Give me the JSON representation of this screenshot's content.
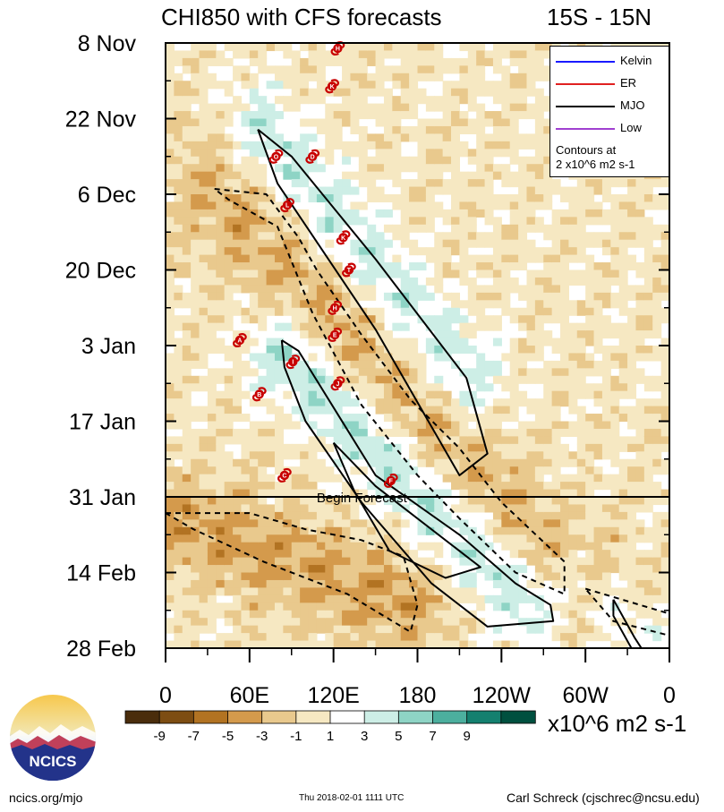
{
  "header": {
    "title": "CHI850 with CFS forecasts",
    "region": "15S - 15N"
  },
  "legend": {
    "items": [
      {
        "label": "Kelvin",
        "color": "#1a1aff"
      },
      {
        "label": "ER",
        "color": "#e02020"
      },
      {
        "label": "MJO",
        "color": "#000000"
      },
      {
        "label": "Low",
        "color": "#a040d0"
      }
    ],
    "note_line1": "Contours at",
    "note_line2": "2 x10^6 m2 s-1"
  },
  "colorbar": {
    "unit_label": "x10^6 m2 s-1",
    "tick_labels": [
      "-9",
      "-7",
      "-5",
      "-3",
      "-1",
      "1",
      "3",
      "5",
      "7",
      "9"
    ],
    "colors": [
      "#4a2d0c",
      "#7d4d12",
      "#b27322",
      "#d49a4c",
      "#e9c98d",
      "#f6e8c2",
      "#ffffff",
      "#cdeee6",
      "#8ed4c5",
      "#4caf9e",
      "#14806f",
      "#00503f"
    ]
  },
  "footer": {
    "logo_text": "NCICS",
    "url": "ncics.org/mjo",
    "timestamp": "Thu 2018-02-01 1111 UTC",
    "author": "Carl Schreck (cjschrec@ncsu.edu)"
  },
  "chart_data": {
    "type": "heatmap",
    "title": "CHI850 with CFS forecasts",
    "subtitle": "15S - 15N",
    "xlabel": "",
    "ylabel": "",
    "x_tick_labels": [
      "0",
      "60E",
      "120E",
      "180",
      "120W",
      "60W",
      "0"
    ],
    "x_tick_values_deg_east": [
      0,
      60,
      120,
      180,
      240,
      300,
      360
    ],
    "xlim": [
      0,
      360
    ],
    "y_tick_labels": [
      "8 Nov",
      "22 Nov",
      "6 Dec",
      "20 Dec",
      "3 Jan",
      "17 Jan",
      "31 Jan",
      "14 Feb",
      "28 Feb"
    ],
    "y_tick_days": [
      0,
      14,
      28,
      42,
      56,
      70,
      84,
      98,
      112
    ],
    "ylim_days_since_8_Nov": [
      0,
      112
    ],
    "forecast_line": {
      "label": "Begin Forecast",
      "day": 84
    },
    "colorbar_levels": [
      -9,
      -7,
      -5,
      -3,
      -1,
      1,
      3,
      5,
      7,
      9
    ],
    "contour_interval": 2,
    "series": [
      {
        "name": "MJO",
        "kind": "contour",
        "color": "#000000"
      },
      {
        "name": "Kelvin",
        "kind": "contour",
        "color": "#1a1aff"
      },
      {
        "name": "ER",
        "kind": "contour",
        "color": "#e02020"
      },
      {
        "name": "Low",
        "kind": "contour",
        "color": "#a040d0"
      }
    ],
    "mjo_contours": [
      {
        "sign": "positive",
        "points": [
          [
            66,
            16
          ],
          [
            90,
            21
          ],
          [
            150,
            40
          ],
          [
            215,
            62
          ],
          [
            230,
            76
          ],
          [
            210,
            80
          ],
          [
            150,
            53
          ],
          [
            80,
            26
          ],
          [
            66,
            16
          ]
        ]
      },
      {
        "sign": "negative",
        "points": [
          [
            35,
            27
          ],
          [
            72,
            28
          ],
          [
            95,
            36
          ],
          [
            108,
            42
          ],
          [
            140,
            54
          ],
          [
            175,
            66
          ],
          [
            210,
            75
          ],
          [
            240,
            85
          ],
          [
            285,
            96
          ],
          [
            285,
            102
          ],
          [
            250,
            98
          ],
          [
            210,
            88
          ],
          [
            180,
            80
          ],
          [
            140,
            67
          ],
          [
            105,
            50
          ],
          [
            80,
            34
          ],
          [
            45,
            29
          ],
          [
            35,
            27
          ]
        ]
      },
      {
        "sign": "positive",
        "points": [
          [
            83,
            55
          ],
          [
            95,
            57
          ],
          [
            150,
            80
          ],
          [
            210,
            91
          ],
          [
            250,
            100
          ],
          [
            275,
            104
          ],
          [
            277,
            107
          ],
          [
            230,
            108
          ],
          [
            190,
            100
          ],
          [
            140,
            85
          ],
          [
            100,
            70
          ],
          [
            85,
            60
          ],
          [
            83,
            55
          ]
        ]
      },
      {
        "sign": "positive",
        "points": [
          [
            120,
            74
          ],
          [
            150,
            82
          ],
          [
            215,
            95
          ],
          [
            225,
            97
          ],
          [
            200,
            99
          ],
          [
            160,
            94
          ],
          [
            135,
            83
          ],
          [
            120,
            74
          ]
        ]
      },
      {
        "sign": "negative",
        "points": [
          [
            300,
            101
          ],
          [
            365,
            106
          ],
          [
            365,
            110
          ],
          [
            320,
            107
          ],
          [
            300,
            101
          ]
        ]
      },
      {
        "sign": "negative",
        "points": [
          [
            0,
            87
          ],
          [
            60,
            87
          ],
          [
            100,
            90
          ],
          [
            140,
            92
          ],
          [
            170,
            95
          ],
          [
            180,
            104
          ],
          [
            175,
            109
          ],
          [
            130,
            102
          ],
          [
            70,
            96
          ],
          [
            20,
            90
          ],
          [
            0,
            87
          ]
        ]
      },
      {
        "sign": "positive",
        "points": [
          [
            320,
            103
          ],
          [
            335,
            110
          ],
          [
            345,
            114
          ],
          [
            335,
            113
          ],
          [
            320,
            106
          ],
          [
            320,
            103
          ]
        ]
      }
    ],
    "tropical_cyclone_markers": [
      {
        "label": "H",
        "lon": 123,
        "day": 1
      },
      {
        "label": "K",
        "lon": 119,
        "day": 8
      },
      {
        "label": "O",
        "lon": 79,
        "day": 21
      },
      {
        "label": "D",
        "lon": 105,
        "day": 21
      },
      {
        "label": "L",
        "lon": 87,
        "day": 30
      },
      {
        "label": "K",
        "lon": 127,
        "day": 36
      },
      {
        "label": "T",
        "lon": 131,
        "day": 42
      },
      {
        "label": "H",
        "lon": 121,
        "day": 49
      },
      {
        "label": "E",
        "lon": 121,
        "day": 54
      },
      {
        "label": "A",
        "lon": 53,
        "day": 55
      },
      {
        "label": "I",
        "lon": 91,
        "day": 59
      },
      {
        "label": "J",
        "lon": 123,
        "day": 63
      },
      {
        "label": "B",
        "lon": 67,
        "day": 65
      },
      {
        "label": "C",
        "lon": 85,
        "day": 80
      },
      {
        "label": "F",
        "lon": 161,
        "day": 81
      }
    ]
  }
}
